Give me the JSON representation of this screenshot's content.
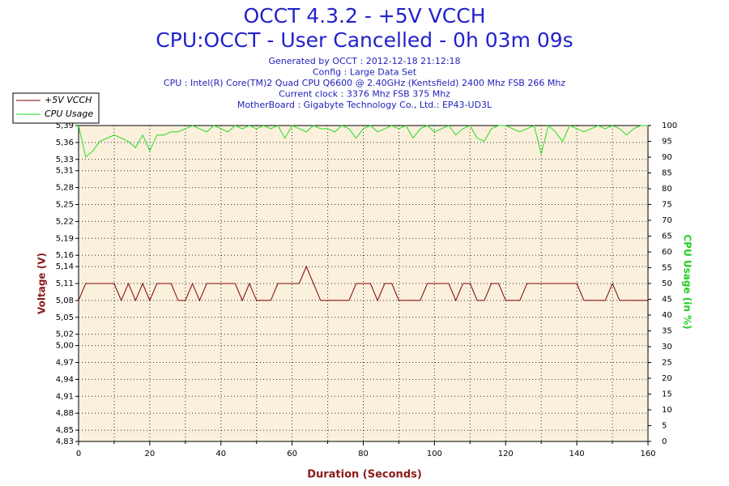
{
  "chart_data": {
    "type": "line",
    "title": "OCCT 4.3.2 - +5V VCCH",
    "subtitle": "CPU:OCCT - User Cancelled - 0h 03m 09s",
    "info": [
      "Generated by OCCT : 2012-12-18 21:12:18",
      "Config : Large Data Set",
      "CPU : Intel(R) Core(TM)2 Quad CPU Q6600 @ 2.40GHz (Kentsfield) 2400 Mhz FSB 266 Mhz",
      "Current clock : 3376 Mhz FSB 375 Mhz",
      "MotherBoard : Gigabyte Technology Co., Ltd.: EP43-UD3L"
    ],
    "xlabel": "Duration (Seconds)",
    "ylabel": "Voltage (V)",
    "y2label": "CPU Usage (in %)",
    "x": [
      0,
      2,
      4,
      6,
      8,
      10,
      12,
      14,
      16,
      18,
      20,
      22,
      24,
      26,
      28,
      30,
      32,
      34,
      36,
      38,
      40,
      42,
      44,
      46,
      48,
      50,
      52,
      54,
      56,
      58,
      60,
      62,
      64,
      66,
      68,
      70,
      72,
      74,
      76,
      78,
      80,
      82,
      84,
      86,
      88,
      90,
      92,
      94,
      96,
      98,
      100,
      102,
      104,
      106,
      108,
      110,
      112,
      114,
      116,
      118,
      120,
      122,
      124,
      126,
      128,
      130,
      132,
      134,
      136,
      138,
      140,
      142,
      144,
      146,
      148,
      150,
      152,
      154,
      156,
      158,
      160
    ],
    "series": [
      {
        "name": "+5V VCCH",
        "color": "#800000",
        "values": [
          5.08,
          5.11,
          5.11,
          5.11,
          5.11,
          5.11,
          5.08,
          5.11,
          5.08,
          5.11,
          5.08,
          5.11,
          5.11,
          5.11,
          5.08,
          5.08,
          5.11,
          5.08,
          5.11,
          5.11,
          5.11,
          5.11,
          5.11,
          5.08,
          5.11,
          5.08,
          5.08,
          5.08,
          5.11,
          5.11,
          5.11,
          5.11,
          5.14,
          5.11,
          5.08,
          5.08,
          5.08,
          5.08,
          5.08,
          5.11,
          5.11,
          5.11,
          5.08,
          5.11,
          5.11,
          5.08,
          5.08,
          5.08,
          5.08,
          5.11,
          5.11,
          5.11,
          5.11,
          5.08,
          5.11,
          5.11,
          5.08,
          5.08,
          5.11,
          5.11,
          5.08,
          5.08,
          5.08,
          5.11,
          5.11,
          5.11,
          5.11,
          5.11,
          5.11,
          5.11,
          5.11,
          5.08,
          5.08,
          5.08,
          5.08,
          5.11,
          5.08,
          5.08,
          5.08,
          5.08,
          5.08
        ]
      },
      {
        "name": "CPU Usage",
        "color": "#22dd22",
        "axis": "y2",
        "values": [
          100,
          90,
          92,
          95,
          96,
          97,
          96,
          95,
          93,
          97,
          92,
          97,
          97,
          98,
          98,
          99,
          100,
          99,
          98,
          100,
          99,
          98,
          100,
          99,
          100,
          99,
          100,
          99,
          100,
          96,
          100,
          99,
          98,
          100,
          99,
          99,
          98,
          100,
          99,
          96,
          99,
          100,
          98,
          99,
          100,
          99,
          100,
          96,
          99,
          100,
          98,
          99,
          100,
          97,
          99,
          100,
          96,
          95,
          99,
          100,
          100,
          99,
          98,
          99,
          100,
          91,
          100,
          98,
          95,
          100,
          99,
          98,
          99,
          100,
          99,
          100,
          99,
          97,
          99,
          100,
          100
        ]
      }
    ],
    "xlim": [
      0,
      160
    ],
    "xticks": [
      0,
      20,
      40,
      60,
      80,
      100,
      120,
      140,
      160
    ],
    "xminor_ticks": [
      10,
      30,
      50,
      70,
      90,
      110,
      130,
      150
    ],
    "ylim": [
      4.83,
      5.39
    ],
    "yticks": [
      {
        "value": 4.83,
        "label": "4,83"
      },
      {
        "value": 4.85,
        "label": "4,85"
      },
      {
        "value": 4.88,
        "label": "4,88"
      },
      {
        "value": 4.91,
        "label": "4,91"
      },
      {
        "value": 4.94,
        "label": "4,94"
      },
      {
        "value": 4.97,
        "label": "4,97"
      },
      {
        "value": 5.0,
        "label": "5,00"
      },
      {
        "value": 5.02,
        "label": "5,02"
      },
      {
        "value": 5.05,
        "label": "5,05"
      },
      {
        "value": 5.08,
        "label": "5,08"
      },
      {
        "value": 5.11,
        "label": "5,11"
      },
      {
        "value": 5.14,
        "label": "5,14"
      },
      {
        "value": 5.16,
        "label": "5,16"
      },
      {
        "value": 5.19,
        "label": "5,19"
      },
      {
        "value": 5.22,
        "label": "5,22"
      },
      {
        "value": 5.25,
        "label": "5,25"
      },
      {
        "value": 5.28,
        "label": "5,28"
      },
      {
        "value": 5.31,
        "label": "5,31"
      },
      {
        "value": 5.33,
        "label": "5,33"
      },
      {
        "value": 5.36,
        "label": "5,36"
      },
      {
        "value": 5.39,
        "label": "5,39"
      }
    ],
    "y2lim": [
      0,
      100
    ],
    "y2ticks": [
      0,
      5,
      10,
      15,
      20,
      25,
      30,
      35,
      40,
      45,
      50,
      55,
      60,
      65,
      70,
      75,
      80,
      85,
      90,
      95,
      100
    ],
    "grid": true,
    "legend": "top-left"
  }
}
